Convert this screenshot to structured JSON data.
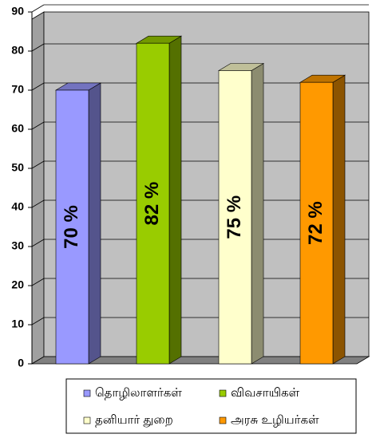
{
  "chart_data": {
    "type": "bar3d",
    "categories": [
      "தொழிலாளர்கள்",
      "விவசாயிகள்",
      "தனியார் துறை",
      "அரசு உழியர்கள்"
    ],
    "values": [
      70,
      82,
      75,
      72
    ],
    "value_labels": [
      "70 %",
      "82 %",
      "75 %",
      "72 %"
    ],
    "colors": [
      "#9999ff",
      "#99cc00",
      "#ffffcc",
      "#ff9900"
    ],
    "ylim": [
      0,
      90
    ],
    "yticks": [
      0,
      10,
      20,
      30,
      40,
      50,
      60,
      70,
      80,
      90
    ],
    "grid": true
  }
}
